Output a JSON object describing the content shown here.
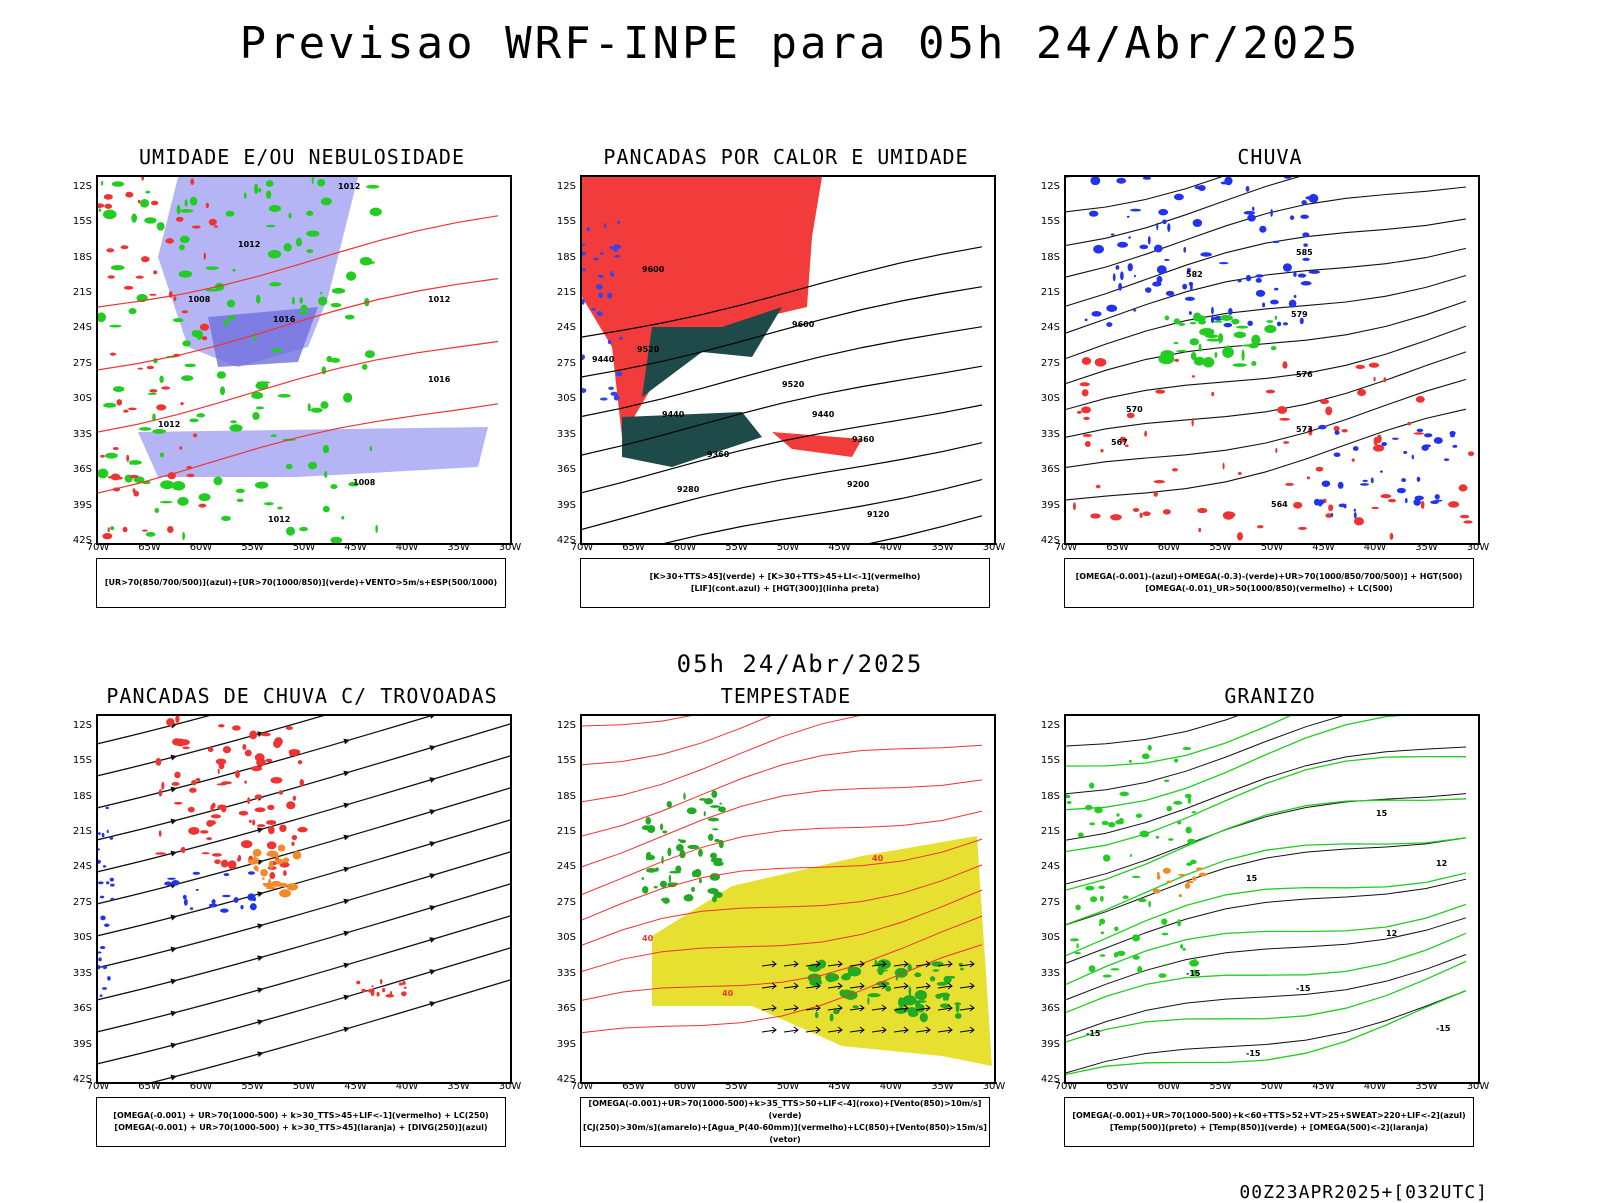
{
  "header": {
    "title": "Previsao WRF-INPE  para 05h 24/Abr/2025",
    "mid_title": "05h 24/Abr/2025",
    "footer": "00Z23APR2025+[032UTC]"
  },
  "axes": {
    "lat_labels": [
      "12S",
      "15S",
      "18S",
      "21S",
      "24S",
      "27S",
      "30S",
      "33S",
      "36S",
      "39S",
      "42S"
    ],
    "lon_labels": [
      "70W",
      "65W",
      "60W",
      "55W",
      "50W",
      "45W",
      "40W",
      "35W",
      "30W"
    ]
  },
  "panels": [
    {
      "title": "UMIDADE E/OU NEBULOSIDADE",
      "legend": [
        "[UR>70(850/700/500)](azul)+[UR>70(1000/850)](verde)+VENTO>5m/s+ESP(500/1000)"
      ],
      "contour_labels": [
        "1012",
        "1012",
        "1008",
        "1016",
        "1016",
        "1012",
        "1012",
        "1008",
        "1012"
      ],
      "colors": {
        "fill": "#a8a8f5",
        "fill_dark": "#6f6fe0",
        "green": "#22cc22",
        "red": "#ee3333"
      }
    },
    {
      "title": "PANCADAS POR CALOR E UMIDADE",
      "legend": [
        "[K>30+TTS>45](verde) + [K>30+TTS>45+LI<-1](vermelho)",
        "[LIF](cont.azul) + [HGT(300)](linha preta)"
      ],
      "contour_labels": [
        "9600",
        "9600",
        "9520",
        "9440",
        "9440",
        "9360",
        "9280",
        "9520",
        "9440",
        "9360",
        "9200",
        "9120"
      ],
      "colors": {
        "red": "#f23c3c",
        "dark": "#1f4a4a",
        "blue": "#3344ee"
      }
    },
    {
      "title": "CHUVA",
      "legend": [
        "[OMEGA(-0.001)-(azul)+OMEGA(-0.3)-(verde)+UR>70(1000/850/700/500)] + HGT(500)",
        "[OMEGA(-0.01)_UR>50(1000/850)(vermelho) + LC(500)"
      ],
      "contour_labels": [
        "585",
        "582",
        "579",
        "576",
        "573",
        "570",
        "567",
        "564"
      ],
      "colors": {
        "blue": "#2233ee",
        "green": "#22cc22",
        "red": "#ee3333"
      }
    },
    {
      "title": "PANCADAS DE CHUVA C/ TROVOADAS",
      "legend": [
        "[OMEGA(-0.001) + UR>70(1000-500) + k>30_TTS>45+LIF<-1](vermelho) + LC(250)",
        "[OMEGA(-0.001) + UR>70(1000-500) + k>30_TTS>45](laranja) + [DIVG(250)](azul)"
      ],
      "contour_labels": [],
      "colors": {
        "red": "#ee3333",
        "orange": "#f08a2a",
        "blue": "#2233ee"
      }
    },
    {
      "title": "TEMPESTADE",
      "legend": [
        "[OMEGA(-0.001)+UR>70(1000-500)+k>35_TTS>50+LIF<-4](roxo)+[Vento(850)>10m/s](verde)",
        "[CJ(250)>30m/s](amarelo)+[Agua_P(40-60mm)](vermelho)+LC(850)+[Vento(850)>15m/s](vetor)"
      ],
      "contour_labels": [
        "40",
        "40",
        "40"
      ],
      "colors": {
        "yellow": "#e8e030",
        "green": "#22aa22",
        "red": "#ee3333"
      }
    },
    {
      "title": "GRANIZO",
      "legend": [
        "[OMEGA(-0.001)+UR>70(1000-500)+k<60+TTS>52+VT>25+SWEAT>220+LIF<-2](azul)",
        "[Temp(500)](preto) + [Temp(850)](verde) + [OMEGA(500)<-2](laranja)"
      ],
      "contour_labels": [
        "15",
        "15",
        "12",
        "12",
        "-15",
        "-15",
        "-15",
        "-15",
        "-15"
      ],
      "colors": {
        "green": "#22cc22",
        "orange": "#f08a2a"
      }
    }
  ]
}
